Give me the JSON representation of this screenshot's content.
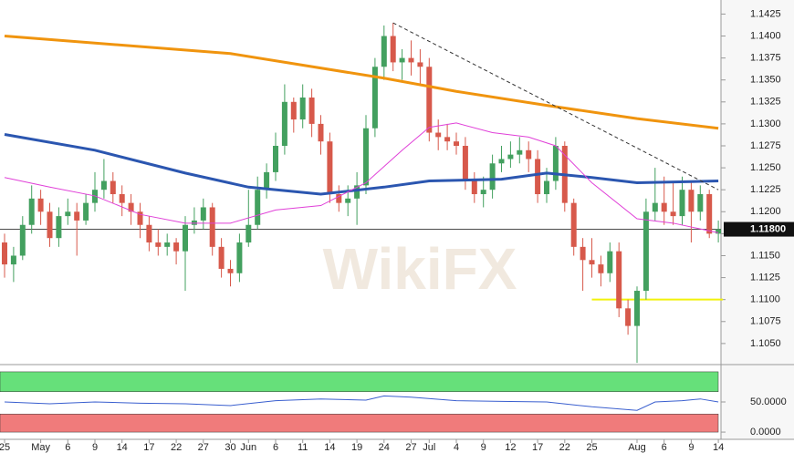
{
  "chart_data": {
    "type": "candlestick",
    "categories": [
      "25",
      null,
      null,
      null,
      "May",
      null,
      null,
      "6",
      null,
      null,
      "9",
      null,
      null,
      "14",
      null,
      null,
      "17",
      null,
      null,
      "22",
      null,
      null,
      "27",
      null,
      null,
      "30",
      null,
      "Jun",
      null,
      null,
      "6",
      null,
      null,
      "11",
      null,
      null,
      "14",
      null,
      null,
      "19",
      null,
      null,
      "24",
      null,
      null,
      "27",
      null,
      "Jul",
      null,
      null,
      "4",
      null,
      null,
      "9",
      null,
      null,
      "12",
      null,
      null,
      "17",
      null,
      null,
      "22",
      null,
      null,
      "25",
      null,
      null,
      null,
      null,
      "Aug",
      null,
      null,
      "6",
      null,
      null,
      "9",
      null,
      null,
      "14"
    ],
    "open": [
      1.1165,
      1.114,
      1.115,
      1.1185,
      1.1215,
      1.12,
      1.117,
      1.1195,
      1.12,
      1.119,
      1.121,
      1.1225,
      1.1235,
      1.122,
      1.121,
      1.12,
      1.1185,
      1.1165,
      1.116,
      1.1165,
      1.1155,
      1.1185,
      1.119,
      1.1205,
      1.116,
      1.1135,
      1.113,
      1.1165,
      1.1185,
      1.1225,
      1.1245,
      1.1275,
      1.1325,
      1.1305,
      1.133,
      1.13,
      1.128,
      1.122,
      1.121,
      1.1215,
      1.123,
      1.1295,
      1.1365,
      1.14,
      1.137,
      1.1375,
      1.137,
      1.1365,
      1.129,
      1.1285,
      1.128,
      1.1275,
      1.1235,
      1.122,
      1.1225,
      1.1255,
      1.126,
      1.1265,
      1.127,
      1.126,
      1.122,
      1.1235,
      1.1275,
      1.121,
      1.116,
      1.1145,
      1.114,
      1.113,
      1.1155,
      1.109,
      1.107,
      1.111,
      1.12,
      1.121,
      1.12,
      1.1195,
      1.1225,
      1.12,
      1.122,
      1.1175
    ],
    "high": [
      1.1175,
      1.116,
      1.1195,
      1.123,
      1.1225,
      1.121,
      1.1205,
      1.1215,
      1.121,
      1.122,
      1.1245,
      1.126,
      1.1245,
      1.123,
      1.122,
      1.121,
      1.1195,
      1.118,
      1.1175,
      1.117,
      1.1195,
      1.1205,
      1.1215,
      1.121,
      1.117,
      1.1145,
      1.1175,
      1.1225,
      1.124,
      1.1255,
      1.129,
      1.1345,
      1.133,
      1.1345,
      1.134,
      1.131,
      1.129,
      1.123,
      1.123,
      1.1245,
      1.131,
      1.1375,
      1.1412,
      1.1415,
      1.1385,
      1.1395,
      1.1385,
      1.1375,
      1.1305,
      1.13,
      1.129,
      1.1285,
      1.1245,
      1.124,
      1.1265,
      1.1275,
      1.128,
      1.1285,
      1.128,
      1.127,
      1.125,
      1.1285,
      1.128,
      1.1215,
      1.117,
      1.117,
      1.115,
      1.1165,
      1.1165,
      1.11,
      1.1115,
      1.1215,
      1.125,
      1.124,
      1.1235,
      1.124,
      1.1235,
      1.123,
      1.1225,
      1.119
    ],
    "low": [
      1.1125,
      1.112,
      1.1145,
      1.1175,
      1.1185,
      1.116,
      1.116,
      1.1185,
      1.115,
      1.1185,
      1.12,
      1.1215,
      1.121,
      1.1195,
      1.1185,
      1.117,
      1.1155,
      1.115,
      1.115,
      1.114,
      1.111,
      1.1175,
      1.118,
      1.115,
      1.1125,
      1.1115,
      1.112,
      1.116,
      1.118,
      1.1215,
      1.1235,
      1.1265,
      1.129,
      1.1295,
      1.1285,
      1.1265,
      1.121,
      1.12,
      1.1195,
      1.1185,
      1.122,
      1.1285,
      1.135,
      1.136,
      1.135,
      1.1355,
      1.1345,
      1.128,
      1.127,
      1.127,
      1.1265,
      1.1225,
      1.121,
      1.1205,
      1.1215,
      1.1245,
      1.125,
      1.1255,
      1.1245,
      1.121,
      1.121,
      1.1225,
      1.12,
      1.115,
      1.111,
      1.1125,
      1.1115,
      1.112,
      1.108,
      1.106,
      1.1028,
      1.11,
      1.119,
      1.1185,
      1.1185,
      1.1185,
      1.1165,
      1.119,
      1.117,
      1.1165
    ],
    "close": [
      1.114,
      1.115,
      1.1185,
      1.1215,
      1.12,
      1.117,
      1.1195,
      1.12,
      1.119,
      1.121,
      1.1225,
      1.1235,
      1.122,
      1.121,
      1.12,
      1.1185,
      1.1165,
      1.116,
      1.1165,
      1.1155,
      1.1185,
      1.119,
      1.1205,
      1.116,
      1.1135,
      1.113,
      1.1165,
      1.1185,
      1.1225,
      1.1245,
      1.1275,
      1.1325,
      1.1305,
      1.133,
      1.13,
      1.128,
      1.122,
      1.121,
      1.1215,
      1.123,
      1.1295,
      1.1365,
      1.14,
      1.137,
      1.1375,
      1.137,
      1.1365,
      1.129,
      1.1285,
      1.128,
      1.1275,
      1.1235,
      1.122,
      1.1225,
      1.1255,
      1.126,
      1.1265,
      1.127,
      1.126,
      1.122,
      1.1235,
      1.1275,
      1.121,
      1.116,
      1.1145,
      1.114,
      1.113,
      1.1155,
      1.109,
      1.107,
      1.111,
      1.12,
      1.121,
      1.12,
      1.1195,
      1.1225,
      1.12,
      1.122,
      1.1175,
      1.118
    ],
    "up_color": "#43a05f",
    "down_color": "#d7594b",
    "ylim": [
      1.1026,
      1.1441
    ],
    "yticks": [
      {
        "value": 1.105,
        "label": "1.1050"
      },
      1.1075,
      {
        "value": 1.11,
        "label": "1.1100"
      },
      1.1125,
      {
        "value": 1.115,
        "label": "1.1150"
      },
      1.1175,
      {
        "value": 1.12,
        "label": "1.1200"
      },
      1.1225,
      {
        "value": 1.125,
        "label": "1.1250"
      },
      1.1275,
      {
        "value": 1.13,
        "label": "1.1300"
      },
      1.1325,
      {
        "value": 1.135,
        "label": "1.1350"
      },
      1.1375,
      {
        "value": 1.14,
        "label": "1.1400"
      },
      1.1425
    ],
    "overlays": [
      {
        "color": "#f0940e",
        "x": [
          0,
          25,
          42,
          50,
          60,
          70,
          79
        ],
        "values": [
          1.14,
          1.138,
          1.1352,
          1.1337,
          1.1321,
          1.1306,
          1.1295
        ]
      },
      {
        "color": "#2b56b0",
        "x": [
          0,
          10,
          20,
          27,
          35,
          42,
          47,
          55,
          60,
          65,
          70,
          79
        ],
        "values": [
          1.1288,
          1.127,
          1.1244,
          1.1228,
          1.122,
          1.1228,
          1.1235,
          1.1237,
          1.1244,
          1.1239,
          1.1233,
          1.1235
        ]
      },
      {
        "color": "#e040d8",
        "x": [
          0,
          5,
          10,
          15,
          20,
          25,
          30,
          35,
          40,
          44,
          47,
          50,
          54,
          58,
          61,
          65,
          70,
          74,
          79
        ],
        "values": [
          1.1239,
          1.1228,
          1.1218,
          1.1197,
          1.1187,
          1.1187,
          1.1202,
          1.1207,
          1.1233,
          1.127,
          1.1296,
          1.1301,
          1.129,
          1.1285,
          1.1275,
          1.1233,
          1.1192,
          1.1187,
          1.1176
        ]
      }
    ],
    "trendline": {
      "color": "#333333",
      "x": [
        43,
        79
      ],
      "values": [
        1.1415,
        1.1225
      ]
    },
    "support": {
      "color": "#f2f20a",
      "x": [
        65,
        79
      ],
      "value": 1.11
    },
    "last_price": {
      "value": 1.118,
      "label": "1.11800"
    },
    "watermark": "WikiFX",
    "indicator": {
      "type": "line",
      "color": "#3a5fcf",
      "ylim": [
        -12,
        112
      ],
      "yticks": [
        {
          "value": 50,
          "label": "50.0000"
        },
        {
          "value": 0,
          "label": "0.0000"
        }
      ],
      "zones": [
        {
          "from": 67,
          "to": 100,
          "color": "#66e07a"
        },
        {
          "from": 0,
          "to": 30,
          "color": "#f07b7b"
        }
      ],
      "x": [
        0,
        5,
        10,
        15,
        20,
        25,
        30,
        35,
        40,
        42,
        45,
        50,
        55,
        60,
        65,
        70,
        72,
        75,
        77,
        79
      ],
      "values": [
        50,
        47,
        50,
        48,
        47,
        44,
        52,
        55,
        53,
        60,
        58,
        52,
        51,
        50,
        42,
        36,
        50,
        52,
        55,
        50
      ]
    }
  }
}
